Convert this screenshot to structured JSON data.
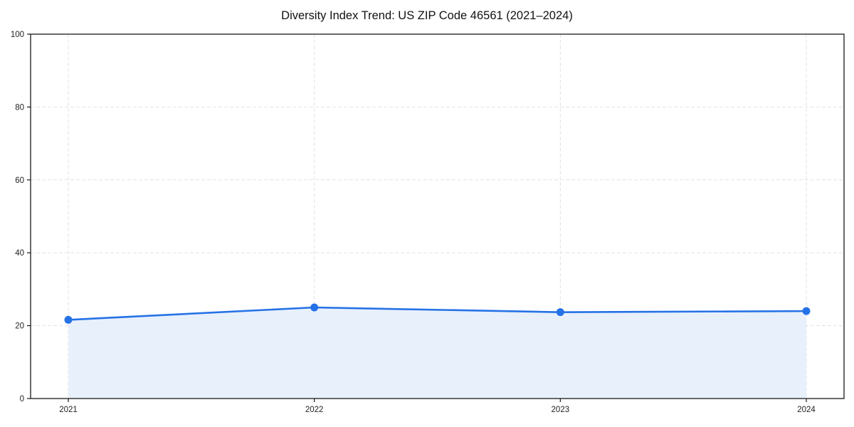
{
  "chart_data": {
    "type": "area",
    "title": "Diversity Index Trend: US ZIP Code 46561 (2021–2024)",
    "categories": [
      "2021",
      "2022",
      "2023",
      "2024"
    ],
    "series": [
      {
        "name": "Diversity Index",
        "values": [
          21.6,
          25.0,
          23.7,
          24.0
        ]
      }
    ],
    "xlabel": "",
    "ylabel": "",
    "ylim": [
      0,
      100
    ],
    "yticks": [
      0,
      20,
      40,
      60,
      80,
      100
    ],
    "grid": "dashed, both axes",
    "legend_position": "none",
    "colors": {
      "line": "#2572e6",
      "marker": "#2572e6",
      "area_fill": "#e8f0fc",
      "grid": "#e2e2e2",
      "spine": "#1a1a1a",
      "tick_label": "#222222",
      "background": "#ffffff"
    }
  }
}
